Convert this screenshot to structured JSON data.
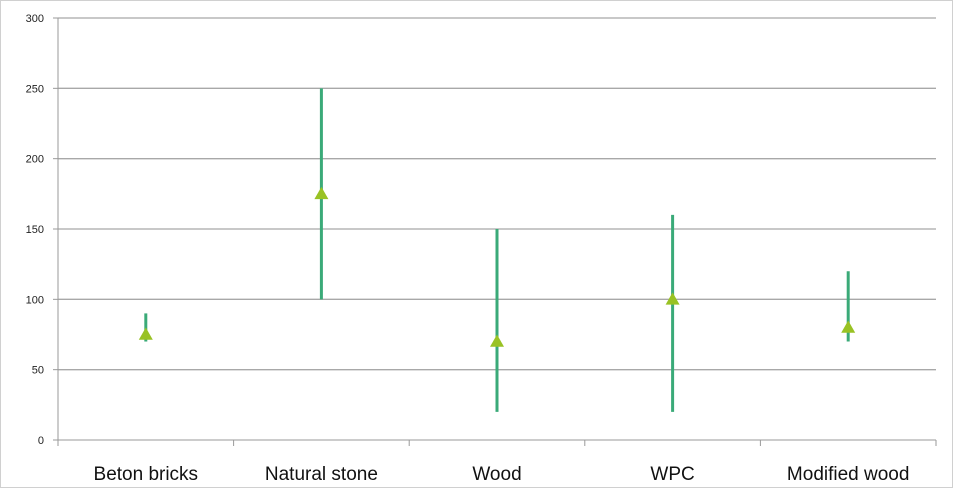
{
  "chart_data": {
    "type": "high-low",
    "categories": [
      "Beton bricks",
      "Natural stone",
      "Wood",
      "WPC",
      "Modified wood"
    ],
    "low": [
      70,
      100,
      20,
      20,
      70
    ],
    "high": [
      90,
      250,
      150,
      160,
      120
    ],
    "mid": [
      75,
      175,
      70,
      100,
      80
    ],
    "ylim": [
      0,
      300
    ],
    "yticks": [
      0,
      50,
      100,
      150,
      200,
      250,
      300
    ],
    "grid": true,
    "title": "",
    "xlabel": "",
    "ylabel": "",
    "colors": {
      "range_line": "#3aaa78",
      "marker": "#99c224",
      "grid": "#a8a8a8",
      "axis": "#9a9a9a"
    }
  }
}
